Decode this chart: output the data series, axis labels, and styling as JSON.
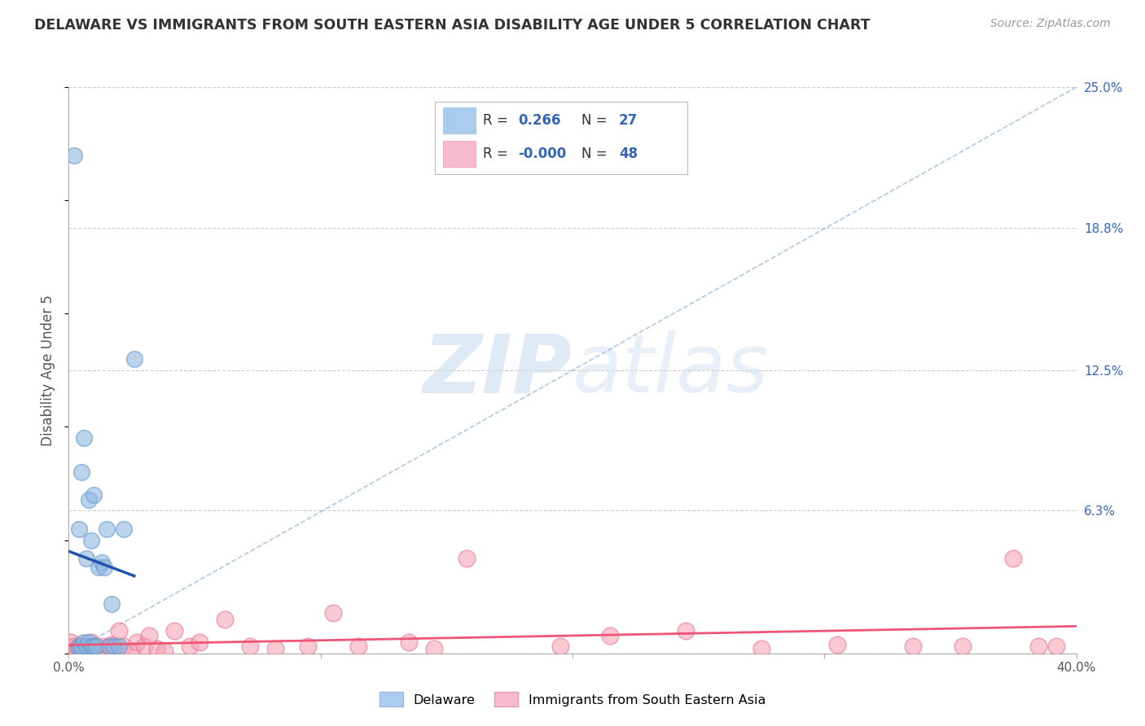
{
  "title": "DELAWARE VS IMMIGRANTS FROM SOUTH EASTERN ASIA DISABILITY AGE UNDER 5 CORRELATION CHART",
  "source": "Source: ZipAtlas.com",
  "ylabel": "Disability Age Under 5",
  "xlim": [
    0.0,
    0.4
  ],
  "ylim": [
    0.0,
    0.25
  ],
  "yticks_right": [
    0.0,
    0.063,
    0.125,
    0.188,
    0.25
  ],
  "ytick_labels_right": [
    "",
    "6.3%",
    "12.5%",
    "18.8%",
    "25.0%"
  ],
  "watermark": "ZIPatlas",
  "legend_r_blue": "0.266",
  "legend_n_blue": "27",
  "legend_r_pink": "-0.000",
  "legend_n_pink": "48",
  "blue_color": "#8FB8E0",
  "blue_edge_color": "#6699CC",
  "pink_color": "#F5A0B0",
  "pink_edge_color": "#E87090",
  "blue_line_color": "#2255AA",
  "pink_line_color": "#EE5577",
  "dashed_line_color": "#99BBDD",
  "background_color": "#FFFFFF",
  "grid_color": "#CCCCCC",
  "blue_points_x": [
    0.004,
    0.004,
    0.004,
    0.005,
    0.005,
    0.006,
    0.006,
    0.007,
    0.007,
    0.008,
    0.008,
    0.009,
    0.009,
    0.01,
    0.01,
    0.011,
    0.012,
    0.013,
    0.014,
    0.015,
    0.016,
    0.017,
    0.018,
    0.02,
    0.022,
    0.026,
    0.002
  ],
  "blue_points_y": [
    0.002,
    0.003,
    0.055,
    0.003,
    0.08,
    0.005,
    0.095,
    0.042,
    0.003,
    0.005,
    0.068,
    0.05,
    0.003,
    0.07,
    0.003,
    0.003,
    0.038,
    0.04,
    0.038,
    0.055,
    0.003,
    0.022,
    0.003,
    0.003,
    0.055,
    0.13,
    0.22
  ],
  "pink_points_x": [
    0.001,
    0.002,
    0.003,
    0.003,
    0.004,
    0.005,
    0.006,
    0.007,
    0.008,
    0.009,
    0.01,
    0.011,
    0.012,
    0.013,
    0.015,
    0.016,
    0.017,
    0.018,
    0.02,
    0.022,
    0.025,
    0.027,
    0.03,
    0.032,
    0.035,
    0.038,
    0.042,
    0.048,
    0.052,
    0.062,
    0.072,
    0.082,
    0.095,
    0.105,
    0.115,
    0.135,
    0.145,
    0.158,
    0.195,
    0.215,
    0.245,
    0.275,
    0.305,
    0.335,
    0.355,
    0.375,
    0.385,
    0.392
  ],
  "pink_points_y": [
    0.005,
    0.003,
    0.002,
    0.001,
    0.003,
    0.004,
    0.002,
    0.001,
    0.002,
    0.005,
    0.003,
    0.002,
    0.001,
    0.003,
    0.001,
    0.003,
    0.004,
    0.002,
    0.01,
    0.003,
    0.001,
    0.005,
    0.003,
    0.008,
    0.002,
    0.001,
    0.01,
    0.003,
    0.005,
    0.015,
    0.003,
    0.002,
    0.003,
    0.018,
    0.003,
    0.005,
    0.002,
    0.042,
    0.003,
    0.008,
    0.01,
    0.002,
    0.004,
    0.003,
    0.003,
    0.042,
    0.003,
    0.003
  ],
  "dashed_slope": 0.625,
  "dashed_intercept": 0.0
}
